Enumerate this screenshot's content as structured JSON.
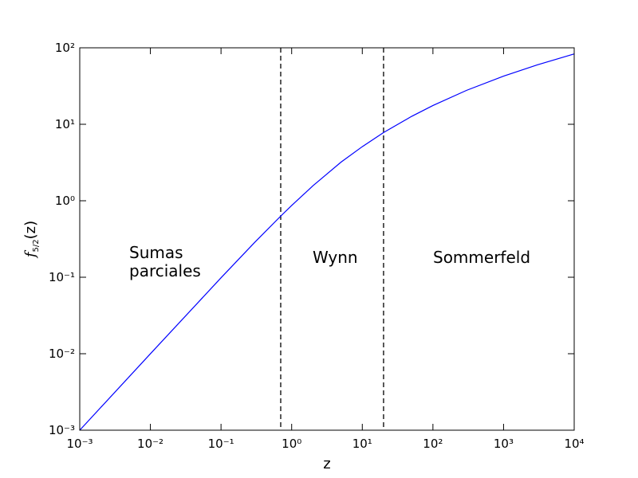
{
  "chart_data": {
    "type": "line",
    "xlabel": "z",
    "ylabel": [
      "f",
      "5/2",
      "(z)"
    ],
    "x": [
      0.001,
      0.01,
      0.1,
      0.3,
      0.7,
      1,
      2,
      3,
      5,
      10,
      20,
      50,
      100,
      300,
      1000,
      3000,
      10000
    ],
    "series": [
      {
        "color": "#0000ff",
        "values": [
          0.001,
          0.00998,
          0.0983,
          0.286,
          0.63,
          0.867,
          1.57,
          2.15,
          3.2,
          5.1,
          7.8,
          12.7,
          17.6,
          27.8,
          42.6,
          59.8,
          83.1
        ]
      }
    ],
    "vlines": [
      0.7,
      20
    ],
    "annotations": [
      "Sumas\nparciales",
      "Wynn",
      "Sommerfeld"
    ],
    "xscale": "log",
    "yscale": "log",
    "xlim": [
      0.001,
      10000
    ],
    "ylim": [
      0.001,
      100
    ],
    "xticks": [
      {
        "value": 0.001,
        "label": "10⁻³"
      },
      {
        "value": 0.01,
        "label": "10⁻²"
      },
      {
        "value": 0.1,
        "label": "10⁻¹"
      },
      {
        "value": 1,
        "label": "10⁰"
      },
      {
        "value": 10,
        "label": "10¹"
      },
      {
        "value": 100,
        "label": "10²"
      },
      {
        "value": 1000,
        "label": "10³"
      },
      {
        "value": 10000,
        "label": "10⁴"
      }
    ],
    "yticks": [
      {
        "value": 0.001,
        "label": "10⁻³"
      },
      {
        "value": 0.01,
        "label": "10⁻²"
      },
      {
        "value": 0.1,
        "label": "10⁻¹"
      },
      {
        "value": 1,
        "label": "10⁰"
      },
      {
        "value": 10,
        "label": "10¹"
      },
      {
        "value": 100,
        "label": "10²"
      }
    ]
  }
}
